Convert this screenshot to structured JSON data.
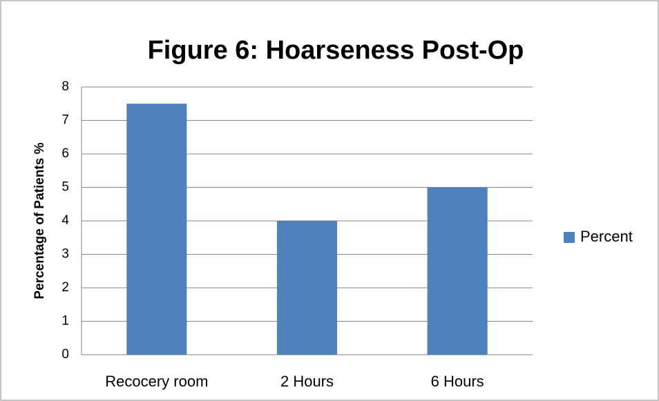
{
  "chart_data": {
    "type": "bar",
    "title": "Figure 6: Hoarseness Post-Op",
    "y_label": "Percentage of Patients %",
    "categories": [
      "Recocery room",
      "2 Hours",
      "6 Hours"
    ],
    "series": [
      {
        "name": "Percent",
        "color": "#4f81bd",
        "values": [
          7.5,
          4,
          5
        ]
      }
    ],
    "ylim": [
      0,
      8
    ],
    "yticks": [
      0,
      1,
      2,
      3,
      4,
      5,
      6,
      7,
      8
    ],
    "grid": true,
    "legend": "right"
  }
}
